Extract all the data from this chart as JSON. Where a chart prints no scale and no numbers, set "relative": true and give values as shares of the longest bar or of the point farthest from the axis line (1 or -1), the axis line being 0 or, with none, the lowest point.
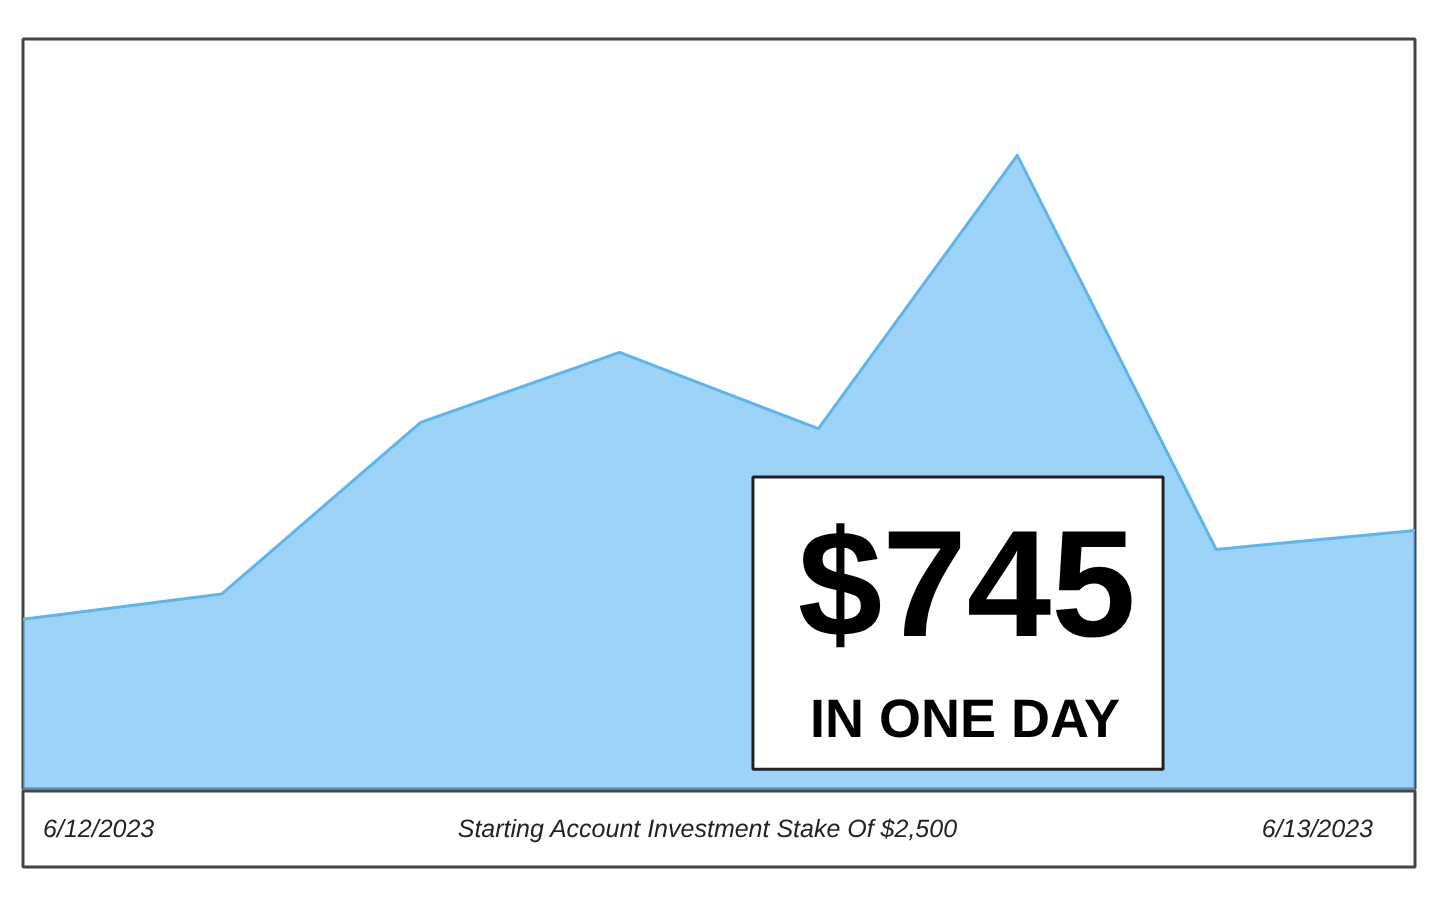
{
  "chart_data": {
    "type": "area",
    "relative": true,
    "categories": [
      null,
      null,
      null,
      null,
      null,
      null,
      null,
      null
    ],
    "series": [
      {
        "color": "#5cb5f0",
        "values": [
          0.27,
          0.31,
          0.58,
          0.69,
          0.57,
          1,
          0.38,
          0.41
        ]
      }
    ],
    "xlabel": "Starting Account Investment Stake Of $2,500",
    "annotations": [
      "$745",
      "IN ONE DAY",
      "6/12/2023",
      "6/13/2023"
    ]
  }
}
